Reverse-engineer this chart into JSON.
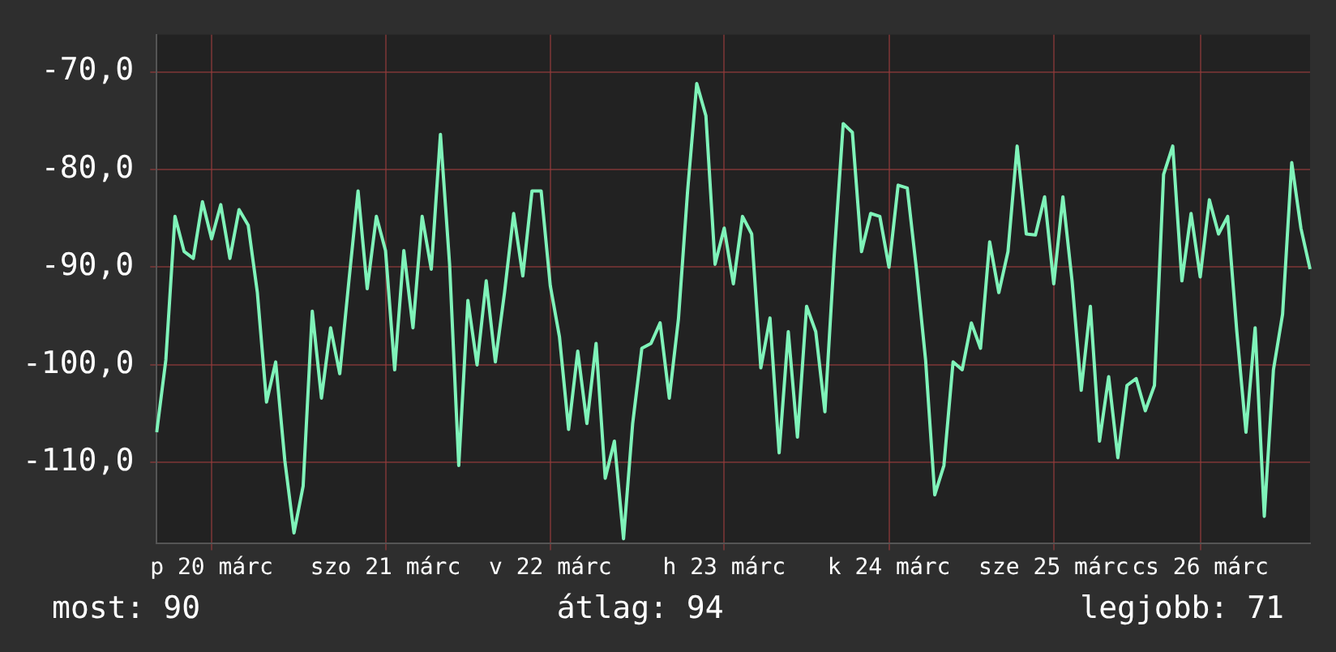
{
  "chart_data": {
    "type": "line",
    "color": "#7ff3b9",
    "marker": "none",
    "line_style": "solid",
    "grid": true,
    "legend": false,
    "categories": [
      null,
      null,
      null,
      null,
      null,
      null,
      "p 20 márc",
      null,
      null,
      null,
      null,
      null,
      null,
      null,
      null,
      null,
      null,
      null,
      null,
      null,
      null,
      null,
      null,
      null,
      null,
      "szo 21 márc",
      null,
      null,
      null,
      null,
      null,
      null,
      null,
      null,
      null,
      null,
      null,
      null,
      null,
      null,
      null,
      null,
      null,
      "v 22 márc",
      null,
      null,
      null,
      null,
      null,
      null,
      null,
      null,
      null,
      null,
      null,
      null,
      null,
      null,
      null,
      null,
      null,
      null,
      "h 23 márc",
      null,
      null,
      null,
      null,
      null,
      null,
      null,
      null,
      null,
      null,
      null,
      null,
      null,
      null,
      null,
      null,
      null,
      "k 24 márc",
      null,
      null,
      null,
      null,
      null,
      null,
      null,
      null,
      null,
      null,
      null,
      null,
      null,
      null,
      null,
      null,
      null,
      "sze 25 márc",
      null,
      null,
      null,
      null,
      null,
      null,
      null,
      null,
      null,
      null,
      null,
      null,
      null,
      null,
      null,
      "cs 26 márc",
      null,
      null,
      null,
      null,
      null,
      null,
      null,
      null,
      null,
      null,
      null,
      null
    ],
    "values": [
      -106.9,
      -99.5,
      -84.8,
      -88.4,
      -89.1,
      -83.3,
      -87.1,
      -83.6,
      -89.1,
      -84.1,
      -85.7,
      -92.6,
      -103.8,
      -99.7,
      -109.8,
      -117.2,
      -112.4,
      -94.5,
      -103.4,
      -96.2,
      -100.9,
      -91.4,
      -82.2,
      -92.2,
      -84.8,
      -88.3,
      -100.5,
      -88.3,
      -96.2,
      -84.8,
      -90.2,
      -76.4,
      -89.7,
      -110.3,
      -93.4,
      -100,
      -91.4,
      -99.7,
      -92.6,
      -84.5,
      -90.9,
      -82.2,
      -82.2,
      -91.9,
      -97.1,
      -106.6,
      -98.6,
      -106,
      -97.8,
      -111.6,
      -107.8,
      -117.8,
      -106,
      -98.3,
      -97.8,
      -95.7,
      -103.4,
      -95.3,
      -82.2,
      -71.2,
      -74.5,
      -89.7,
      -86,
      -91.7,
      -84.8,
      -86.6,
      -100.3,
      -95.2,
      -109,
      -96.6,
      -107.4,
      -94,
      -96.6,
      -104.8,
      -89.1,
      -75.3,
      -76.2,
      -88.4,
      -84.5,
      -84.8,
      -90,
      -81.6,
      -81.9,
      -90.2,
      -99.5,
      -113.3,
      -110.3,
      -99.7,
      -100.5,
      -95.7,
      -98.3,
      -87.4,
      -92.6,
      -88.4,
      -77.6,
      -86.6,
      -86.7,
      -82.8,
      -91.7,
      -82.8,
      -91.4,
      -102.6,
      -94,
      -107.8,
      -101.2,
      -109.5,
      -102.1,
      -101.4,
      -104.7,
      -102.1,
      -80.5,
      -77.6,
      -91.4,
      -84.5,
      -91,
      -83.1,
      -86.6,
      -84.8,
      -96.6,
      -106.9,
      -96.2,
      -115.5,
      -100.5,
      -94.8,
      -79.3,
      -86,
      -90.2
    ],
    "ylim": [
      -118.3,
      -66.2
    ],
    "yticks": [
      {
        "value": -70,
        "label": "-70,0"
      },
      {
        "value": -80,
        "label": "-80,0"
      },
      {
        "value": -90,
        "label": "-90,0"
      },
      {
        "value": -100,
        "label": "-100,0"
      },
      {
        "value": -110,
        "label": "-110,0"
      }
    ],
    "annotations": [
      "most: 90",
      "átlag: 94",
      "legjobb: 71"
    ]
  }
}
